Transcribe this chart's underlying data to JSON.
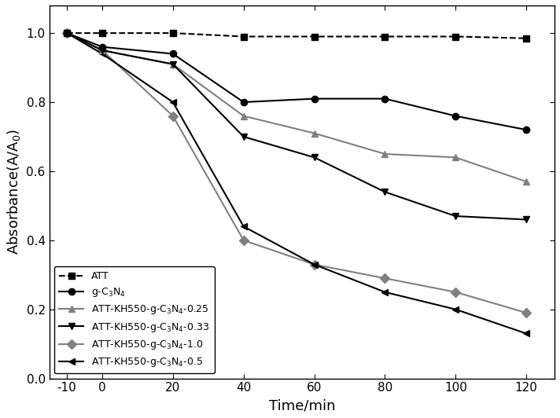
{
  "x": [
    -10,
    0,
    20,
    40,
    60,
    80,
    100,
    120
  ],
  "series": {
    "ATT": {
      "y": [
        1.0,
        1.0,
        1.0,
        0.99,
        0.99,
        0.99,
        0.99,
        0.985
      ],
      "color": "black",
      "marker": "s",
      "linestyle": "--",
      "linewidth": 1.5,
      "markersize": 6,
      "zorder": 5
    },
    "g-C$_3$N$_4$": {
      "y": [
        1.0,
        0.96,
        0.94,
        0.8,
        0.81,
        0.81,
        0.76,
        0.72
      ],
      "color": "black",
      "marker": "o",
      "linestyle": "-",
      "linewidth": 1.5,
      "markersize": 6,
      "zorder": 4
    },
    "ATT-KH550-g-C$_3$N$_4$-0.25": {
      "y": [
        1.0,
        0.95,
        0.91,
        0.76,
        0.71,
        0.65,
        0.64,
        0.57
      ],
      "color": "#808080",
      "marker": "^",
      "linestyle": "-",
      "linewidth": 1.5,
      "markersize": 6,
      "zorder": 3
    },
    "ATT-KH550-g-C$_3$N$_4$-0.33": {
      "y": [
        1.0,
        0.95,
        0.91,
        0.7,
        0.64,
        0.54,
        0.47,
        0.46
      ],
      "color": "black",
      "marker": "v",
      "linestyle": "-",
      "linewidth": 1.5,
      "markersize": 6,
      "zorder": 3
    },
    "ATT-KH550-g-C$_3$N$_4$-1.0": {
      "y": [
        1.0,
        0.95,
        0.76,
        0.4,
        0.33,
        0.29,
        0.25,
        0.19
      ],
      "color": "#808080",
      "marker": "D",
      "linestyle": "-",
      "linewidth": 1.5,
      "markersize": 6,
      "zorder": 2
    },
    "ATT-KH550-g-C$_3$N$_4$-0.5": {
      "y": [
        1.0,
        0.94,
        0.8,
        0.44,
        0.33,
        0.25,
        0.2,
        0.13
      ],
      "color": "black",
      "marker": "<",
      "linestyle": "-",
      "linewidth": 1.5,
      "markersize": 6,
      "zorder": 2
    }
  },
  "xlabel": "Time/min",
  "ylabel": "Absorbance(A/A$_0$)",
  "xlim": [
    -15,
    128
  ],
  "ylim": [
    0.0,
    1.08
  ],
  "xticks": [
    -10,
    0,
    20,
    40,
    60,
    80,
    100,
    120
  ],
  "xticklabels": [
    "-10",
    "0",
    "20",
    "40",
    "60",
    "80",
    "100",
    "120"
  ],
  "yticks": [
    0.0,
    0.2,
    0.4,
    0.6,
    0.8,
    1.0
  ],
  "legend_loc": "lower left",
  "legend_fontsize": 9,
  "axis_fontsize": 13,
  "tick_fontsize": 11,
  "figure_facecolor": "white",
  "axes_facecolor": "white"
}
